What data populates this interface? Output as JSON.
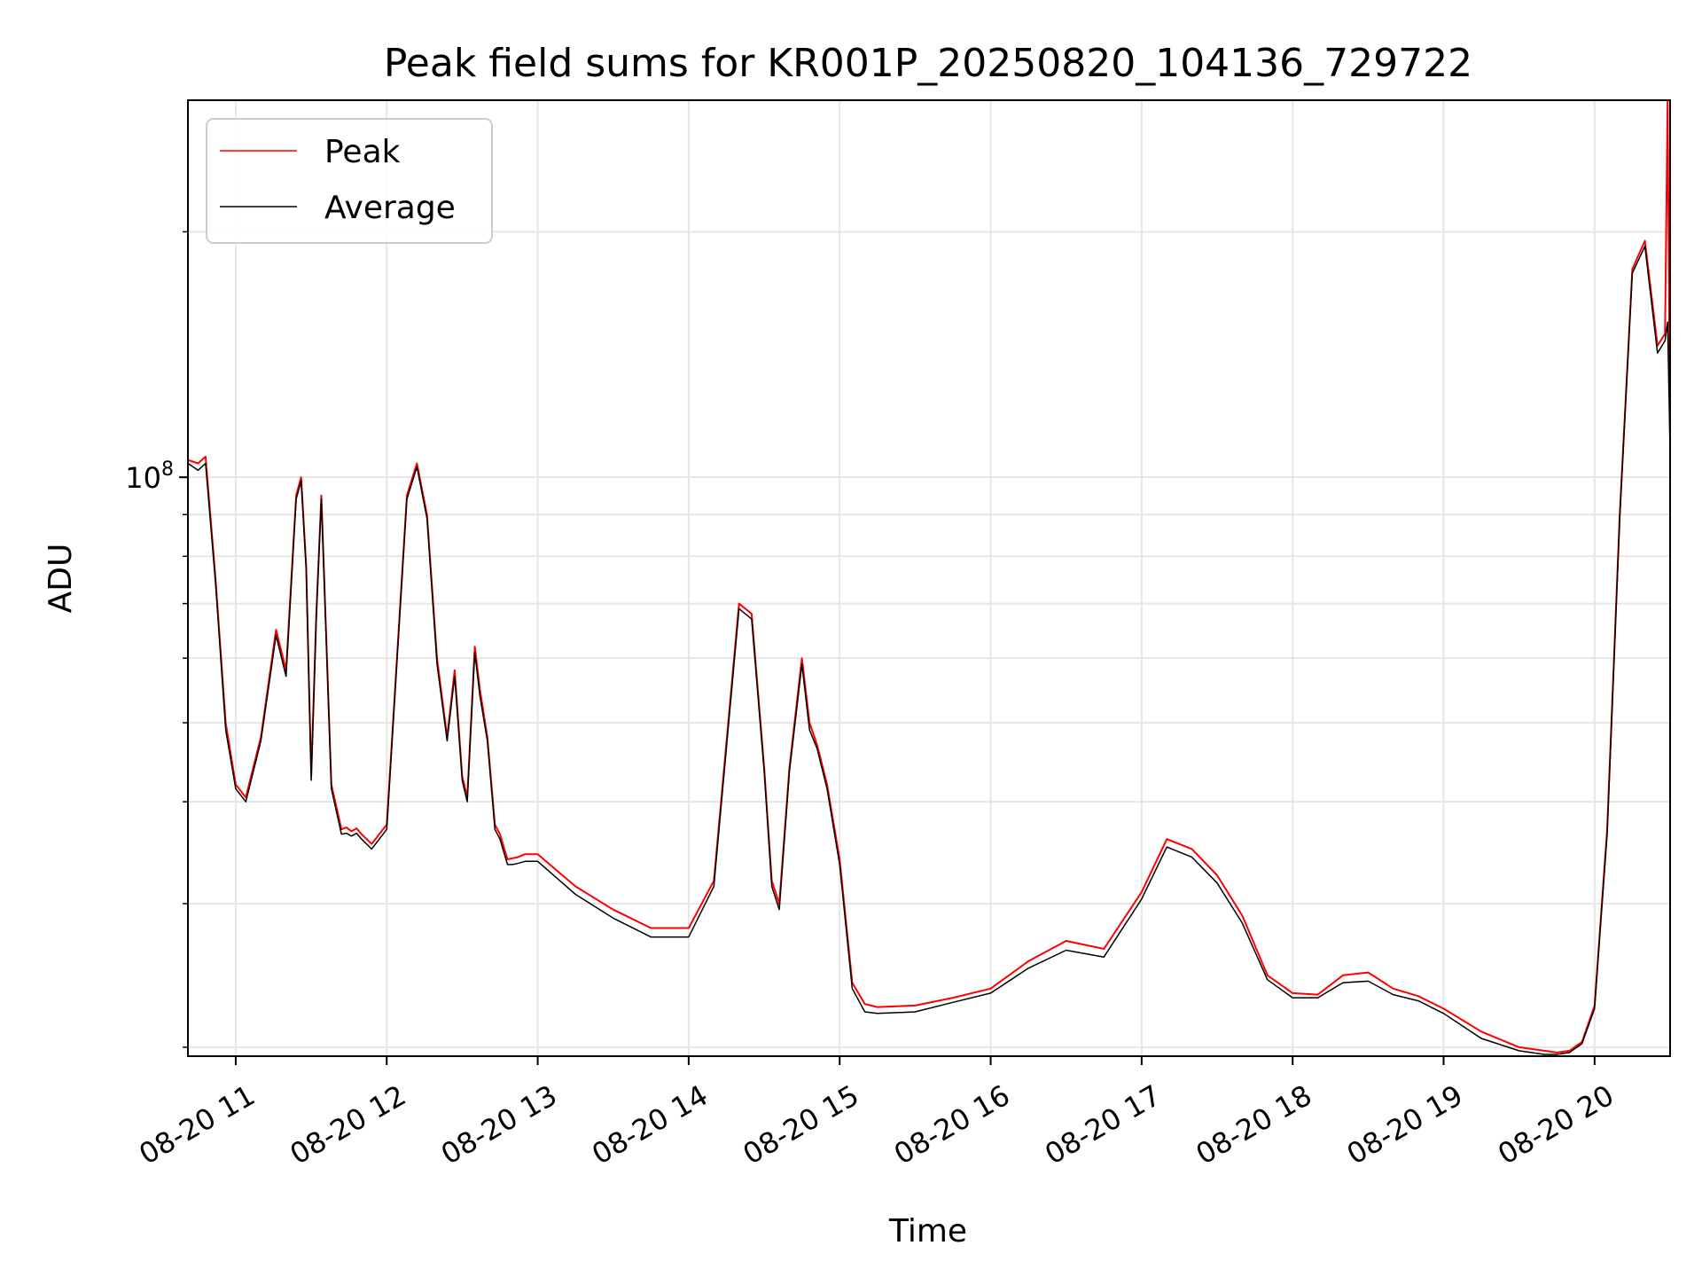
{
  "chart_data": {
    "type": "line",
    "title": "Peak field sums for KR001P_20250820_104136_729722",
    "xlabel": "Time",
    "ylabel": "ADU",
    "x_scale": "time",
    "y_scale": "log",
    "xlim": [
      "08-20 10:41",
      "08-20 20:30"
    ],
    "ylim": [
      19500000,
      290000000
    ],
    "grid": true,
    "legend_position": "top-left",
    "x_ticks": [
      "08-20 11",
      "08-20 12",
      "08-20 13",
      "08-20 14",
      "08-20 15",
      "08-20 16",
      "08-20 17",
      "08-20 18",
      "08-20 19",
      "08-20 20"
    ],
    "y_ticks": [
      {
        "label": "10",
        "exp": "8",
        "value": 100000000
      }
    ],
    "x": [
      "10:41",
      "10:45",
      "10:48",
      "10:52",
      "10:56",
      "11:00",
      "11:04",
      "11:10",
      "11:16",
      "11:20",
      "11:24",
      "11:26",
      "11:28",
      "11:30",
      "11:32",
      "11:34",
      "11:38",
      "11:42",
      "11:44",
      "11:46",
      "11:48",
      "11:50",
      "11:54",
      "12:00",
      "12:08",
      "12:12",
      "12:16",
      "12:20",
      "12:24",
      "12:27",
      "12:30",
      "12:32",
      "12:35",
      "12:37",
      "12:40",
      "12:43",
      "12:45",
      "12:48",
      "12:50",
      "12:52",
      "12:55",
      "13:00",
      "13:15",
      "13:30",
      "13:45",
      "14:00",
      "14:10",
      "14:20",
      "14:25",
      "14:30",
      "14:33",
      "14:36",
      "14:40",
      "14:45",
      "14:48",
      "14:51",
      "14:55",
      "15:00",
      "15:05",
      "15:10",
      "15:15",
      "15:30",
      "15:45",
      "16:00",
      "16:15",
      "16:30",
      "16:45",
      "17:00",
      "17:10",
      "17:20",
      "17:30",
      "17:40",
      "17:50",
      "18:00",
      "18:10",
      "18:20",
      "18:30",
      "18:40",
      "18:50",
      "19:00",
      "19:15",
      "19:30",
      "19:40",
      "19:45",
      "19:50",
      "19:55",
      "20:00",
      "20:05",
      "20:10",
      "20:15",
      "20:20",
      "20:25",
      "20:28",
      "20:29",
      "20:30"
    ],
    "series": [
      {
        "name": "Peak",
        "color": "#ff0000",
        "values": [
          105000000,
          104000000,
          106000000,
          75000000,
          50000000,
          42000000,
          40500000,
          48000000,
          65000000,
          58000000,
          95000000,
          100000000,
          78000000,
          43000000,
          68000000,
          95000000,
          42000000,
          37000000,
          37200000,
          36800000,
          37100000,
          36500000,
          35500000,
          37500000,
          95000000,
          104000000,
          90000000,
          60000000,
          48000000,
          58000000,
          43000000,
          40500000,
          62000000,
          55000000,
          48000000,
          37500000,
          36500000,
          34000000,
          34100000,
          34200000,
          34500000,
          34500000,
          31500000,
          29500000,
          28000000,
          28000000,
          32000000,
          70000000,
          68000000,
          44000000,
          32000000,
          30000000,
          44000000,
          60000000,
          50000000,
          47000000,
          42000000,
          34000000,
          24000000,
          22600000,
          22400000,
          22500000,
          23000000,
          23600000,
          25500000,
          27000000,
          26400000,
          31000000,
          36000000,
          35000000,
          32500000,
          29000000,
          24500000,
          23300000,
          23200000,
          24500000,
          24700000,
          23600000,
          23100000,
          22300000,
          20900000,
          20000000,
          19800000,
          19700000,
          19800000,
          20300000,
          22500000,
          37000000,
          90000000,
          180000000,
          195000000,
          145000000,
          150000000,
          290000000,
          110000000
        ]
      },
      {
        "name": "Average",
        "color": "#000000",
        "values": [
          104000000,
          102000000,
          104000000,
          74000000,
          49000000,
          41500000,
          40000000,
          47500000,
          64000000,
          57000000,
          94000000,
          99000000,
          77000000,
          42500000,
          67000000,
          94000000,
          41500000,
          36500000,
          36600000,
          36300000,
          36600000,
          36000000,
          35000000,
          37000000,
          94000000,
          103000000,
          89000000,
          59000000,
          47500000,
          57000000,
          42500000,
          40000000,
          61000000,
          54000000,
          47500000,
          37000000,
          36000000,
          33500000,
          33500000,
          33600000,
          33800000,
          33800000,
          30800000,
          28800000,
          27300000,
          27300000,
          31500000,
          69000000,
          67000000,
          43500000,
          31500000,
          29500000,
          43500000,
          59000000,
          49000000,
          46500000,
          41500000,
          33500000,
          23600000,
          22100000,
          22000000,
          22100000,
          22700000,
          23300000,
          25000000,
          26300000,
          25800000,
          30400000,
          35200000,
          34200000,
          31800000,
          28400000,
          24200000,
          23000000,
          23000000,
          24000000,
          24100000,
          23200000,
          22800000,
          22000000,
          20500000,
          19800000,
          19600000,
          19600000,
          19700000,
          20200000,
          22300000,
          36500000,
          89000000,
          178000000,
          192000000,
          142000000,
          147000000,
          155000000,
          108000000
        ]
      }
    ]
  }
}
